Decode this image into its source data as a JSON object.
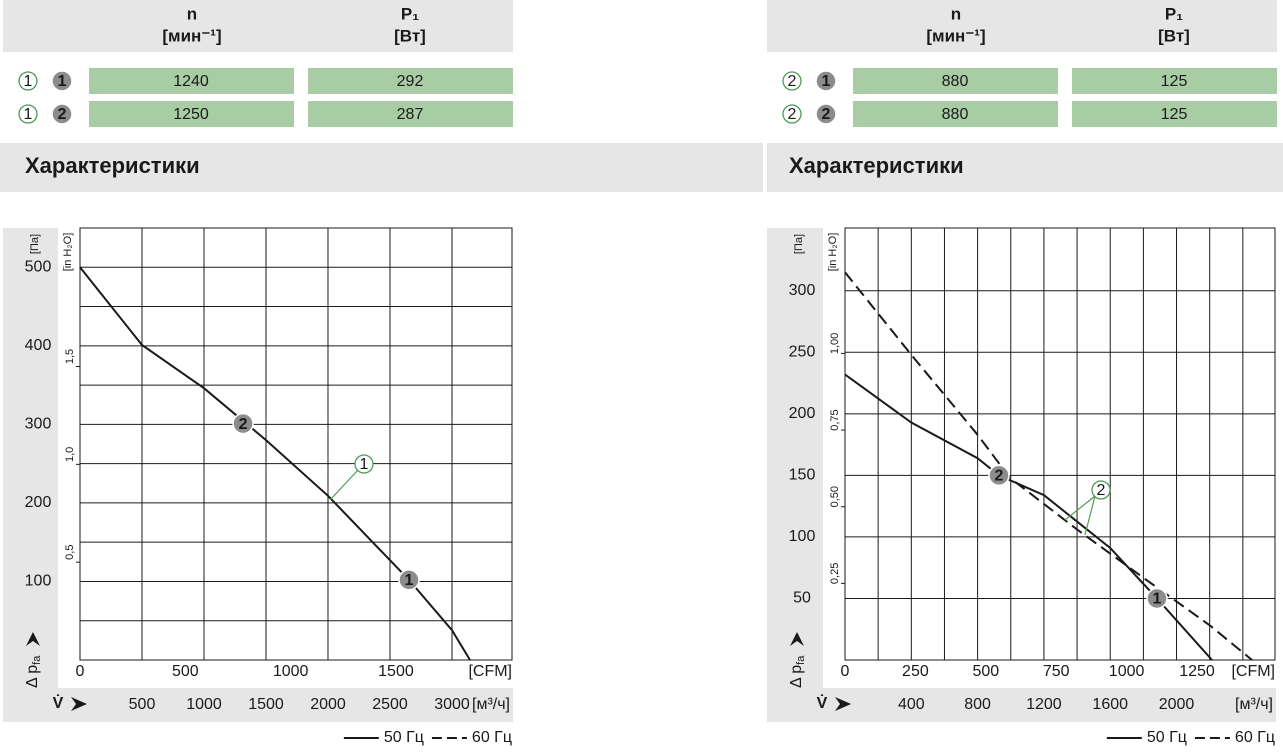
{
  "panels": [
    {
      "table": {
        "columns": [
          {
            "name": "n",
            "unit": "[мин⁻¹]"
          },
          {
            "name": "P₁",
            "unit": "[Вт]"
          }
        ],
        "rows": [
          {
            "curve": "1",
            "point": "1",
            "values": [
              1240,
              292
            ]
          },
          {
            "curve": "1",
            "point": "2",
            "values": [
              1250,
              287
            ]
          }
        ]
      },
      "section_title": "Характеристики"
    },
    {
      "table": {
        "columns": [
          {
            "name": "n",
            "unit": "[мин⁻¹]"
          },
          {
            "name": "P₁",
            "unit": "[Вт]"
          }
        ],
        "rows": [
          {
            "curve": "2",
            "point": "1",
            "values": [
              880,
              125
            ]
          },
          {
            "curve": "2",
            "point": "2",
            "values": [
              880,
              125
            ]
          }
        ]
      },
      "section_title": "Характеристики"
    }
  ],
  "chart_data": [
    {
      "type": "line",
      "y_label": "Δ p",
      "y_label_sub": "fa",
      "y_unit": "[Па]",
      "y2_unit": "[in H₂O]",
      "x_label": "V̇",
      "x_unit": "[м³/ч]",
      "x2_unit": "[CFM]",
      "xlim": [
        0,
        3484
      ],
      "xticks": [
        500,
        1000,
        1500,
        2000,
        2500,
        3000
      ],
      "x2lim": [
        0,
        2051
      ],
      "x2ticks": [
        0,
        500,
        1000,
        1500
      ],
      "ylim": [
        0,
        550
      ],
      "yticks": [
        100,
        200,
        300,
        400,
        500
      ],
      "ygrid": [
        50,
        100,
        150,
        200,
        250,
        300,
        350,
        400,
        450,
        500
      ],
      "y2lim": [
        0,
        2.208
      ],
      "y2ticks": [
        {
          "value": 0.5,
          "label": "0,5"
        },
        {
          "value": 1,
          "label": "1,0"
        },
        {
          "value": 1.5,
          "label": "1,5"
        }
      ],
      "series": [
        {
          "line": "solid",
          "color": "#1a1a1a",
          "x": [
            0,
            500,
            1000,
            1500,
            2000,
            2500,
            2653,
            3000,
            3145
          ],
          "values": [
            500,
            401,
            346,
            280,
            209,
            127,
            102,
            38,
            0
          ]
        }
      ],
      "operating_points": [
        {
          "label": "2",
          "x": 1315,
          "y": 301
        },
        {
          "label": "1",
          "x": 2653,
          "y": 102
        }
      ],
      "curve_label": "1",
      "legend": [
        {
          "name": "50 Гц",
          "line": "solid"
        },
        {
          "name": "60 Гц",
          "line": "dashed"
        }
      ]
    },
    {
      "type": "line",
      "y_label": "Δ p",
      "y_label_sub": "fa",
      "y_unit": "[Па]",
      "y2_unit": "[in H₂O]",
      "x_label": "V̇",
      "x_unit": "[м³/ч]",
      "x2_unit": "[CFM]",
      "xlim": [
        0,
        2594
      ],
      "xticks": [
        400,
        800,
        1200,
        1600,
        2000
      ],
      "xgrid": [
        200,
        400,
        600,
        800,
        1000,
        1200,
        1400,
        1600,
        1800,
        2000,
        2200,
        2400
      ],
      "x2lim": [
        0,
        1527
      ],
      "x2ticks": [
        0,
        250,
        500,
        750,
        1000,
        1250
      ],
      "ylim": [
        0,
        351
      ],
      "yticks": [
        50,
        100,
        150,
        200,
        250,
        300
      ],
      "y2lim": [
        0,
        1.409
      ],
      "y2ticks": [
        {
          "value": 0.25,
          "label": "0,25"
        },
        {
          "value": 0.5,
          "label": "0,50"
        },
        {
          "value": 0.75,
          "label": "0,75"
        },
        {
          "value": 1,
          "label": "1,00"
        }
      ],
      "series": [
        {
          "line": "solid",
          "color": "#1a1a1a",
          "x": [
            0,
            400,
            800,
            929,
            1200,
            1600,
            1882,
            2214
          ],
          "values": [
            232,
            193,
            164,
            150,
            134,
            91,
            50,
            0
          ]
        },
        {
          "line": "dashed",
          "color": "#1a1a1a",
          "x": [
            0,
            400,
            800,
            995,
            1400,
            1798,
            2202,
            2455
          ],
          "values": [
            315,
            248,
            183,
            148,
            106,
            67,
            28,
            0
          ]
        }
      ],
      "operating_points": [
        {
          "label": "2",
          "x": 929,
          "y": 150
        },
        {
          "label": "1",
          "x": 1882,
          "y": 50
        }
      ],
      "curve_label": "2",
      "legend": [
        {
          "name": "50 Гц",
          "line": "solid"
        },
        {
          "name": "60 Гц",
          "line": "dashed"
        }
      ]
    }
  ]
}
